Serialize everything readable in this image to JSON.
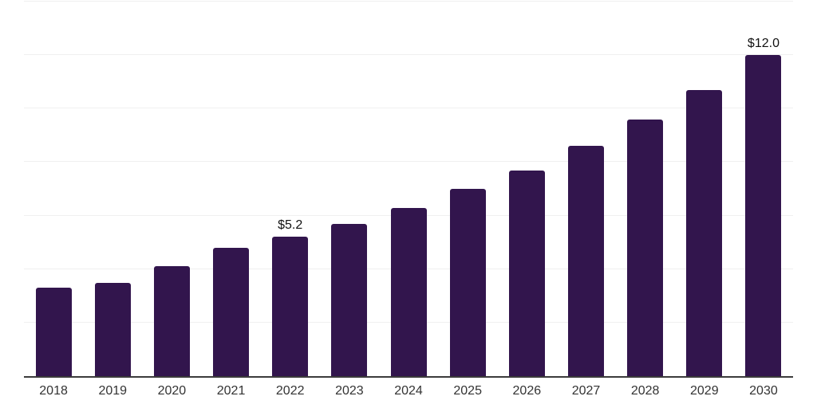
{
  "chart_data": {
    "type": "bar",
    "title": "",
    "xlabel": "",
    "ylabel": "",
    "categories": [
      "2018",
      "2019",
      "2020",
      "2021",
      "2022",
      "2023",
      "2024",
      "2025",
      "2026",
      "2027",
      "2028",
      "2029",
      "2030"
    ],
    "values": [
      3.3,
      3.5,
      4.1,
      4.8,
      5.2,
      5.7,
      6.3,
      7.0,
      7.7,
      8.6,
      9.6,
      10.7,
      12.0
    ],
    "data_labels": [
      "",
      "",
      "",
      "",
      "$5.2",
      "",
      "",
      "",
      "",
      "",
      "",
      "",
      "$12.0"
    ],
    "ylim": [
      0,
      14
    ],
    "grid": true,
    "grid_step": 2,
    "legend": false,
    "y_axis_labels_visible": false,
    "colors": {
      "bar": "#32154D",
      "gridline": "#F0F0F0",
      "axis_line": "#3B3B3B",
      "tick_label": "#333333",
      "data_label": "#111111",
      "background": "#FFFFFF"
    }
  }
}
